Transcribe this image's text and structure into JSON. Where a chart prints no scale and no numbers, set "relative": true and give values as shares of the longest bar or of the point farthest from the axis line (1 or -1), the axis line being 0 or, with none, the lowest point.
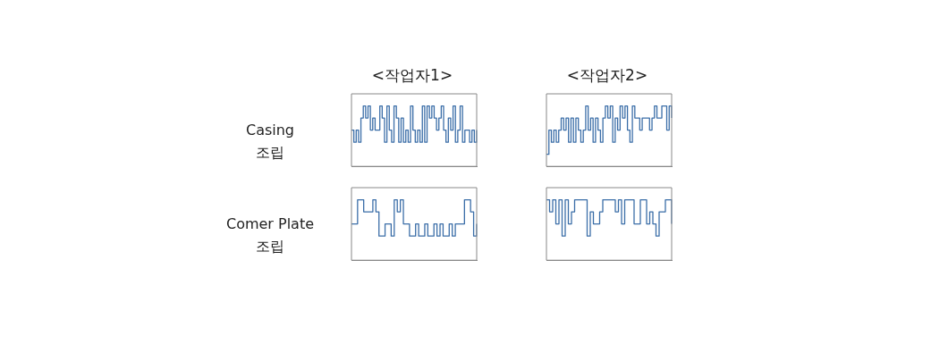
{
  "chart_data": [
    {
      "type": "step",
      "title": "<작업자1>",
      "ylabel": "Casing\n조립",
      "relative": true,
      "grid": false,
      "legend": false,
      "marker": "none",
      "line_style": "solid",
      "categories": [
        null,
        null,
        null,
        null,
        null,
        null,
        null,
        null,
        null,
        null,
        null,
        null,
        null,
        null,
        null,
        null,
        null,
        null,
        null,
        null,
        null,
        null,
        null,
        null,
        null,
        null,
        null,
        null,
        null,
        null,
        null,
        null,
        null,
        null,
        null,
        null,
        null,
        null,
        null,
        null,
        null,
        null,
        null,
        null,
        null,
        null,
        null,
        null,
        null,
        null,
        null,
        null,
        null,
        null
      ],
      "series": [
        {
          "color": "#3b6ea8",
          "values": [
            0.6,
            0.4,
            0.6,
            0.4,
            0.8,
            1,
            0.8,
            1,
            0.6,
            0.8,
            0.6,
            0.6,
            1,
            0.8,
            0.4,
            1,
            0.6,
            0.4,
            1,
            0.8,
            0.4,
            0.8,
            0.4,
            0.6,
            0.4,
            1,
            0.6,
            0.4,
            0.6,
            0.4,
            1,
            0.4,
            1,
            0.8,
            1,
            0.8,
            0.6,
            0.8,
            1,
            0.6,
            0.4,
            0.8,
            0.6,
            1,
            0.4,
            0.6,
            1,
            0.4,
            0.6,
            0.6,
            0.4,
            0.6,
            0.4,
            0.6
          ]
        }
      ]
    },
    {
      "type": "step",
      "title": "<작업자2>",
      "relative": true,
      "grid": false,
      "legend": false,
      "marker": "none",
      "line_style": "solid",
      "categories": [
        null,
        null,
        null,
        null,
        null,
        null,
        null,
        null,
        null,
        null,
        null,
        null,
        null,
        null,
        null,
        null,
        null,
        null,
        null,
        null,
        null,
        null,
        null,
        null,
        null,
        null,
        null,
        null,
        null,
        null,
        null,
        null,
        null,
        null,
        null,
        null,
        null,
        null,
        null,
        null,
        null,
        null,
        null,
        null,
        null,
        null,
        null,
        null,
        null,
        null,
        null,
        null
      ],
      "series": [
        {
          "color": "#3b6ea8",
          "values": [
            0.2,
            0.6,
            0.4,
            0.6,
            0.4,
            0.6,
            0.8,
            0.6,
            0.8,
            0.4,
            0.8,
            0.4,
            0.8,
            0.6,
            0.4,
            0.6,
            1,
            0.6,
            0.8,
            0.4,
            0.8,
            0.6,
            0.4,
            0.8,
            1,
            0.8,
            1,
            0.4,
            0.8,
            0.6,
            1,
            0.8,
            1,
            0.6,
            0.4,
            1,
            0.8,
            0.8,
            0.6,
            0.8,
            0.8,
            0.8,
            0.6,
            0.8,
            1,
            0.8,
            0.8,
            1,
            1,
            0.6,
            1,
            0.8
          ]
        }
      ]
    },
    {
      "type": "step",
      "ylabel": "Comer Plate\n조립",
      "relative": true,
      "grid": false,
      "legend": false,
      "marker": "none",
      "line_style": "solid",
      "categories": [
        null,
        null,
        null,
        null,
        null,
        null,
        null,
        null,
        null,
        null,
        null,
        null,
        null,
        null,
        null,
        null,
        null,
        null,
        null,
        null,
        null,
        null,
        null,
        null,
        null,
        null,
        null,
        null,
        null,
        null,
        null,
        null,
        null,
        null,
        null,
        null,
        null,
        null,
        null,
        null,
        null,
        null
      ],
      "series": [
        {
          "color": "#3b6ea8",
          "values": [
            0.6,
            0.6,
            1,
            1,
            0.8,
            0.8,
            0.8,
            1,
            0.8,
            0.4,
            0.4,
            0.6,
            0.6,
            0.4,
            1,
            0.8,
            1,
            0.6,
            0.6,
            0.4,
            0.4,
            0.6,
            0.4,
            0.4,
            0.6,
            0.4,
            0.4,
            0.6,
            0.4,
            0.6,
            0.4,
            0.4,
            0.6,
            0.4,
            0.6,
            0.6,
            0.6,
            1,
            1,
            0.8,
            0.4,
            0.6
          ]
        }
      ]
    },
    {
      "type": "step",
      "relative": true,
      "grid": false,
      "legend": false,
      "marker": "none",
      "line_style": "solid",
      "categories": [
        null,
        null,
        null,
        null,
        null,
        null,
        null,
        null,
        null,
        null,
        null,
        null,
        null,
        null,
        null,
        null,
        null,
        null,
        null,
        null,
        null,
        null,
        null,
        null,
        null,
        null,
        null,
        null,
        null,
        null,
        null,
        null,
        null,
        null,
        null,
        null,
        null,
        null,
        null,
        null,
        null
      ],
      "series": [
        {
          "color": "#3b6ea8",
          "values": [
            1,
            0.8,
            1,
            0.6,
            1,
            0.4,
            1,
            0.6,
            0.8,
            1,
            1,
            1,
            1,
            0.4,
            0.8,
            0.6,
            0.6,
            0.8,
            1,
            1,
            1,
            1,
            0.8,
            1,
            0.6,
            1,
            1,
            1,
            0.6,
            0.6,
            1,
            1,
            0.6,
            0.8,
            0.6,
            0.4,
            0.8,
            0.8,
            1,
            1,
            0.6
          ]
        }
      ]
    }
  ]
}
